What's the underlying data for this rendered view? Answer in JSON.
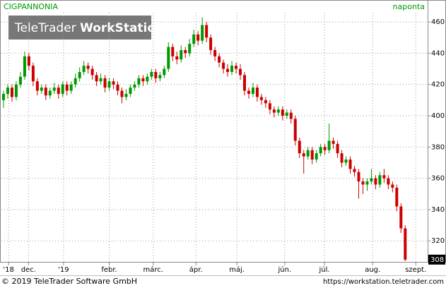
{
  "chart_data": {
    "type": "candlestick",
    "title": "CIGPANNONIA",
    "frequency": "naponta",
    "watermark": [
      "TeleTrader",
      "WorkStation"
    ],
    "xlim": [
      -0.5,
      100.3
    ],
    "xticks": [
      {
        "value": 1.2,
        "label": "'18"
      },
      {
        "value": 5.9,
        "label": "dec."
      },
      {
        "value": 14.2,
        "label": "'19"
      },
      {
        "value": 25,
        "label": "febr."
      },
      {
        "value": 35.4,
        "label": "márc."
      },
      {
        "value": 45.5,
        "label": "ápr."
      },
      {
        "value": 55.2,
        "label": "máj."
      },
      {
        "value": 66.5,
        "label": "jún."
      },
      {
        "value": 75.9,
        "label": "júl."
      },
      {
        "value": 87.3,
        "label": "aug."
      },
      {
        "value": 97.5,
        "label": "szept."
      }
    ],
    "ylim": [
      307,
      465
    ],
    "yticks": [
      320,
      340,
      360,
      380,
      400,
      420,
      440,
      460
    ],
    "grid": true,
    "up_color": "#009900",
    "down_color": "#cc0000",
    "last_label": 308,
    "series": [
      {
        "name": "CIGPANNONIA",
        "values": [
          [
            410,
            416,
            405,
            414
          ],
          [
            414,
            420,
            411,
            418
          ],
          [
            418,
            420,
            409,
            412
          ],
          [
            412,
            422,
            410,
            420
          ],
          [
            420,
            428,
            418,
            425
          ],
          [
            425,
            441,
            423,
            438
          ],
          [
            438,
            440,
            429,
            432
          ],
          [
            432,
            434,
            419,
            422
          ],
          [
            422,
            424,
            413,
            416
          ],
          [
            416,
            420,
            414,
            418
          ],
          [
            418,
            420,
            410,
            413
          ],
          [
            413,
            418,
            411,
            416
          ],
          [
            416,
            421,
            414,
            418
          ],
          [
            418,
            420,
            411,
            414
          ],
          [
            414,
            422,
            412,
            420
          ],
          [
            420,
            422,
            413,
            416
          ],
          [
            416,
            422,
            414,
            420
          ],
          [
            420,
            427,
            418,
            424
          ],
          [
            424,
            431,
            422,
            428
          ],
          [
            428,
            435,
            426,
            432
          ],
          [
            432,
            434,
            427,
            430
          ],
          [
            430,
            432,
            423,
            426
          ],
          [
            426,
            428,
            419,
            422
          ],
          [
            422,
            427,
            420,
            424
          ],
          [
            424,
            426,
            415,
            418
          ],
          [
            418,
            424,
            416,
            422
          ],
          [
            422,
            424,
            417,
            420
          ],
          [
            420,
            422,
            413,
            416
          ],
          [
            416,
            418,
            408,
            412
          ],
          [
            412,
            417,
            410,
            414
          ],
          [
            414,
            420,
            412,
            418
          ],
          [
            418,
            422,
            416,
            420
          ],
          [
            420,
            426,
            418,
            424
          ],
          [
            424,
            426,
            419,
            422
          ],
          [
            422,
            427,
            420,
            425
          ],
          [
            425,
            430,
            423,
            428
          ],
          [
            428,
            430,
            421,
            424
          ],
          [
            424,
            428,
            422,
            426
          ],
          [
            426,
            432,
            424,
            430
          ],
          [
            430,
            447,
            428,
            444
          ],
          [
            444,
            446,
            435,
            438
          ],
          [
            438,
            441,
            433,
            436
          ],
          [
            436,
            445,
            434,
            442
          ],
          [
            442,
            444,
            437,
            440
          ],
          [
            440,
            449,
            438,
            446
          ],
          [
            446,
            455,
            444,
            452
          ],
          [
            452,
            454,
            445,
            448
          ],
          [
            448,
            463,
            446,
            458
          ],
          [
            458,
            460,
            447,
            450
          ],
          [
            450,
            452,
            439,
            442
          ],
          [
            442,
            444,
            435,
            438
          ],
          [
            438,
            440,
            431,
            434
          ],
          [
            434,
            436,
            427,
            430
          ],
          [
            430,
            433,
            425,
            428
          ],
          [
            428,
            435,
            426,
            432
          ],
          [
            432,
            434,
            427,
            430
          ],
          [
            430,
            433,
            423,
            426
          ],
          [
            426,
            428,
            413,
            416
          ],
          [
            416,
            418,
            411,
            414
          ],
          [
            414,
            421,
            412,
            418
          ],
          [
            418,
            420,
            409,
            412
          ],
          [
            412,
            414,
            407,
            410
          ],
          [
            410,
            412,
            405,
            408
          ],
          [
            408,
            410,
            401,
            404
          ],
          [
            404,
            406,
            399,
            402
          ],
          [
            402,
            406,
            400,
            404
          ],
          [
            404,
            406,
            397,
            400
          ],
          [
            400,
            404,
            398,
            402
          ],
          [
            402,
            404,
            395,
            398
          ],
          [
            398,
            400,
            381,
            384
          ],
          [
            384,
            386,
            373,
            376
          ],
          [
            376,
            378,
            363,
            374
          ],
          [
            374,
            380,
            372,
            378
          ],
          [
            378,
            380,
            369,
            372
          ],
          [
            372,
            378,
            370,
            376
          ],
          [
            376,
            382,
            374,
            380
          ],
          [
            380,
            382,
            375,
            378
          ],
          [
            378,
            395,
            376,
            384
          ],
          [
            384,
            386,
            379,
            382
          ],
          [
            382,
            384,
            373,
            376
          ],
          [
            376,
            378,
            367,
            370
          ],
          [
            370,
            374,
            368,
            372
          ],
          [
            372,
            374,
            363,
            366
          ],
          [
            366,
            368,
            361,
            364
          ],
          [
            364,
            366,
            347,
            358
          ],
          [
            358,
            360,
            350,
            356
          ],
          [
            356,
            360,
            352,
            358
          ],
          [
            358,
            366,
            356,
            360
          ],
          [
            360,
            362,
            353,
            356
          ],
          [
            356,
            364,
            354,
            362
          ],
          [
            362,
            366,
            357,
            360
          ],
          [
            360,
            362,
            353,
            356
          ],
          [
            356,
            358,
            351,
            354
          ],
          [
            354,
            356,
            339,
            342
          ],
          [
            342,
            344,
            325,
            328
          ],
          [
            328,
            330,
            307,
            308
          ]
        ]
      }
    ]
  },
  "footer": {
    "copyright": "© 2019 TeleTrader Software GmbH",
    "url": "https://workstation.teletrader.com"
  }
}
